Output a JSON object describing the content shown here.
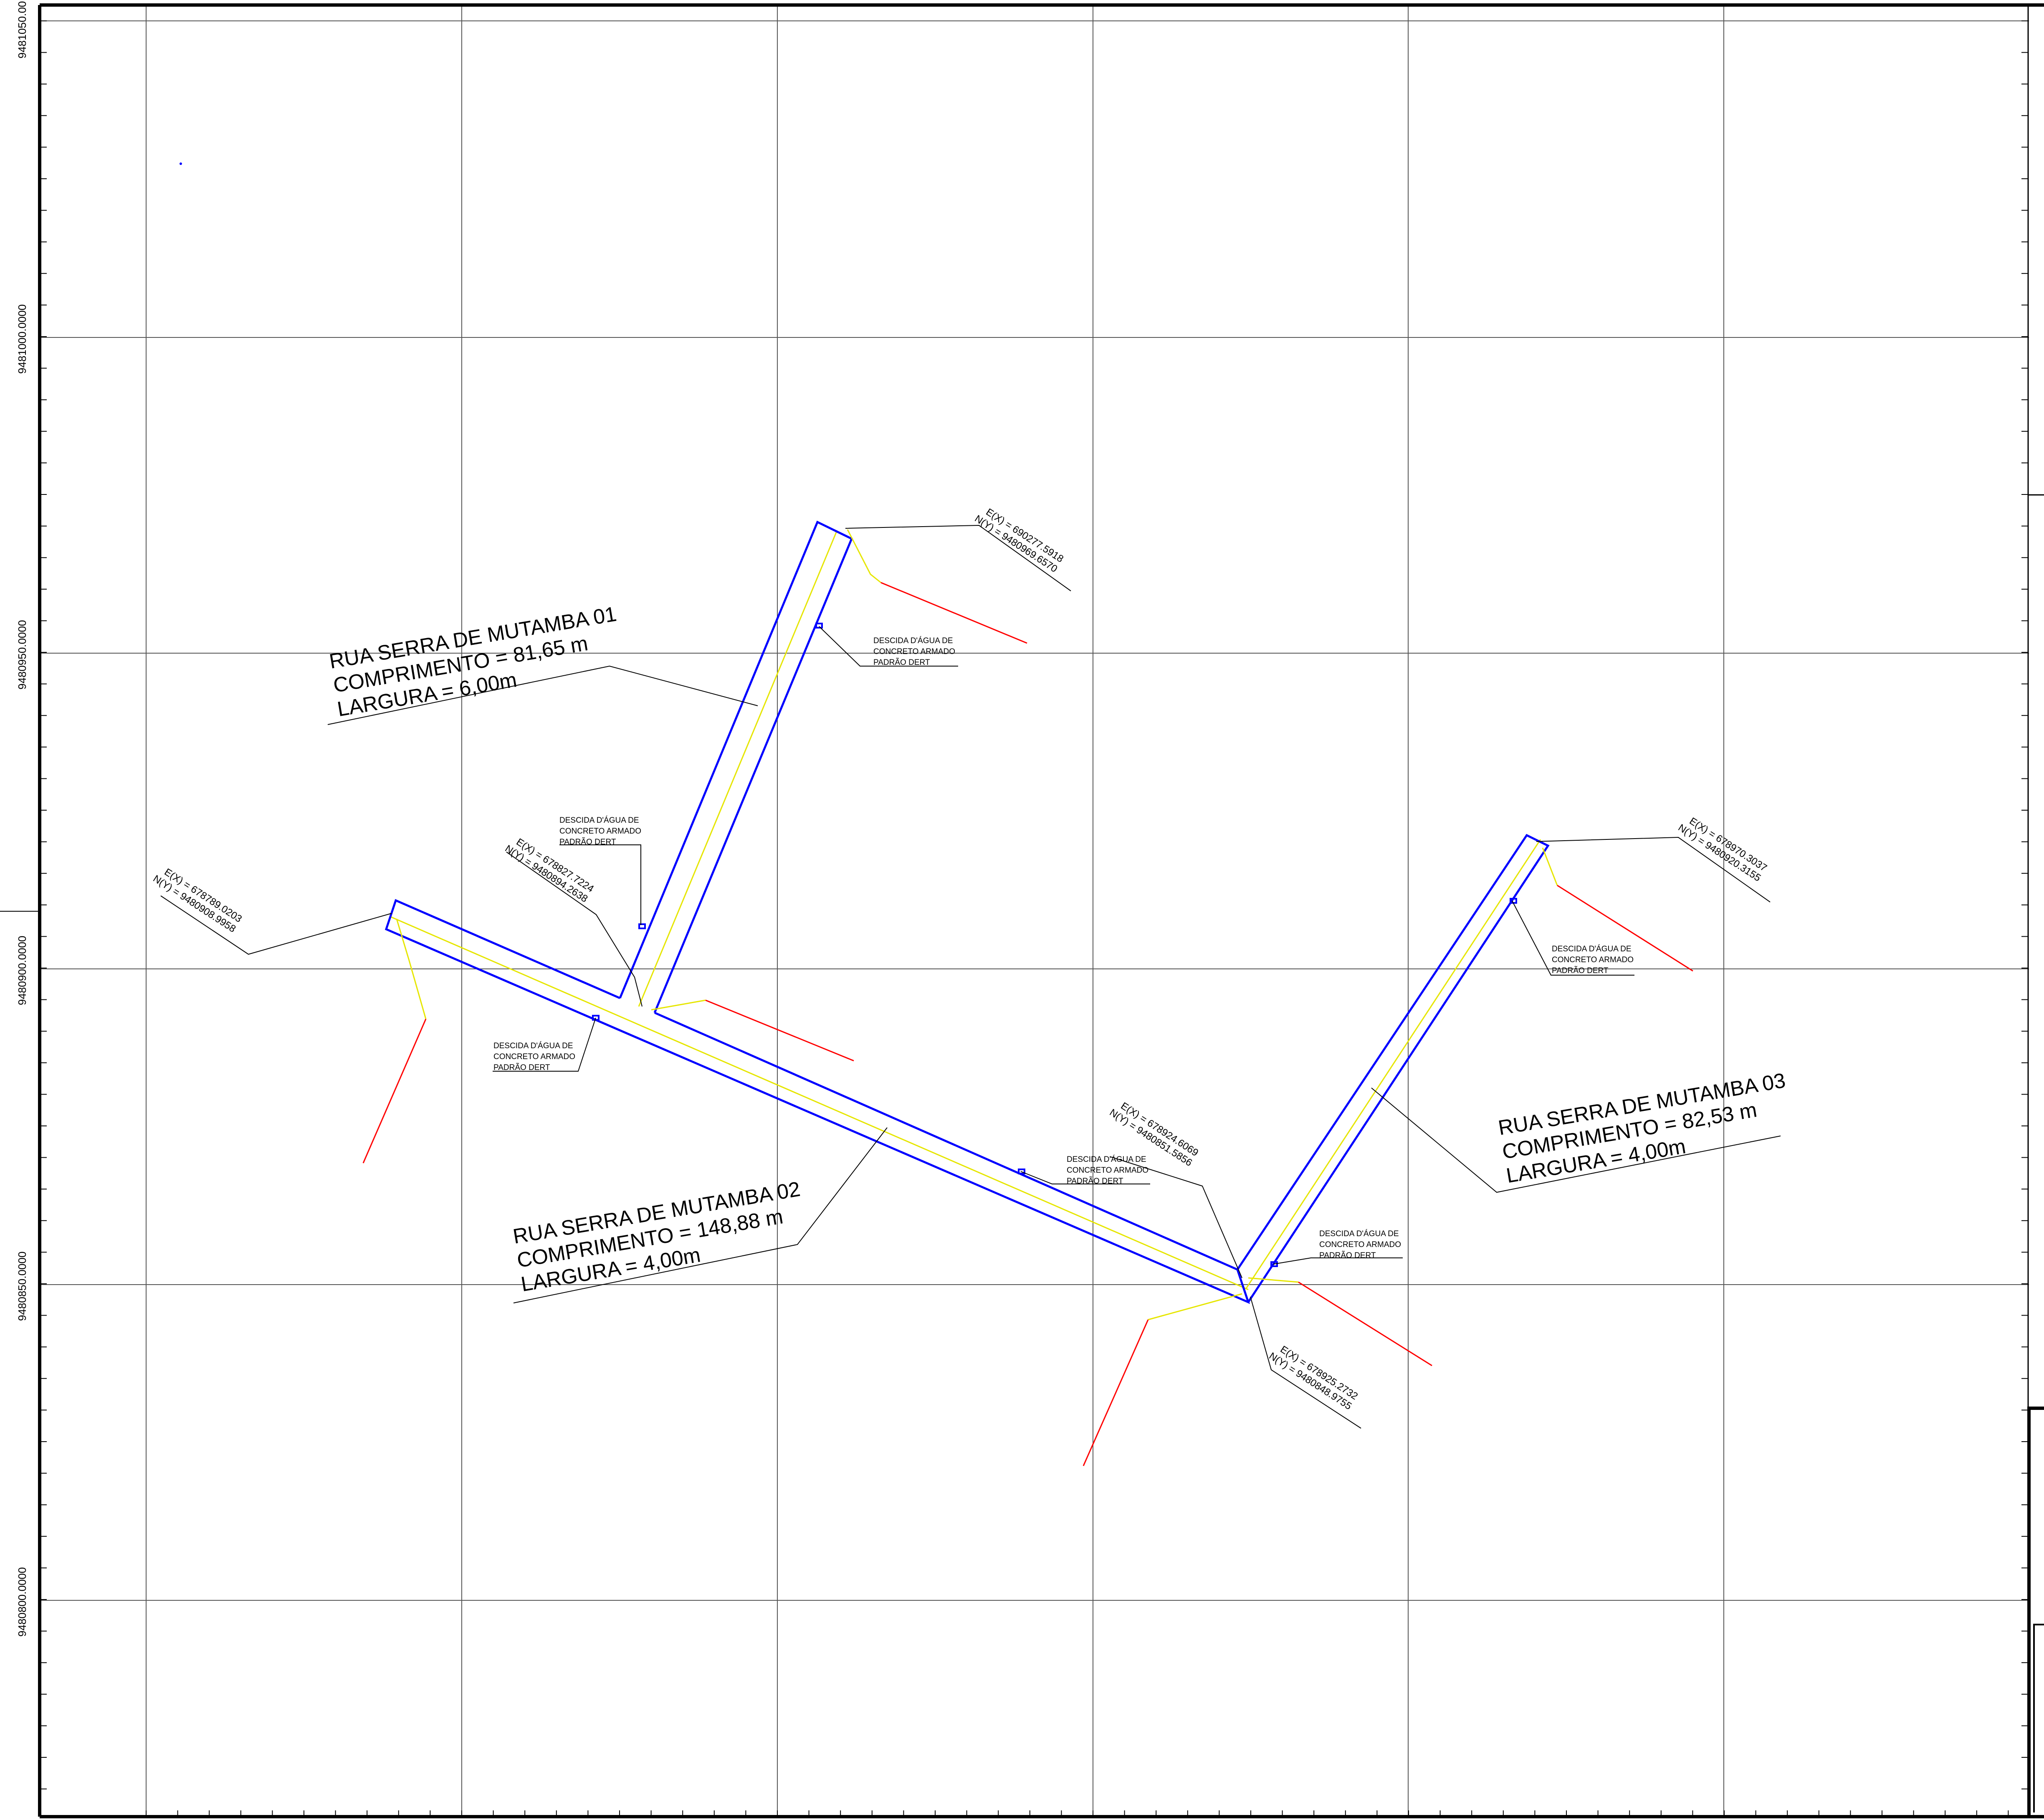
{
  "grid_labels": {
    "y_left": [
      "9481050.00",
      "9481000.0000",
      "9480950.0000",
      "9480900.0000",
      "9480850.0000",
      "9480800.0000"
    ]
  },
  "streets": [
    {
      "name": "RUA SERRA DE MUTAMBA 01",
      "length": "COMPRIMENTO = 81,65 m",
      "width": "LARGURA = 6,00m"
    },
    {
      "name": "RUA SERRA DE MUTAMBA 02",
      "length": "COMPRIMENTO = 148,88 m",
      "width": "LARGURA = 4,00m"
    },
    {
      "name": "RUA SERRA DE MUTAMBA 03",
      "length": "COMPRIMENTO = 82,53 m",
      "width": "LARGURA = 4,00m"
    }
  ],
  "coordinates": [
    {
      "e": "E(X) = 690277.5918",
      "n": "N(Y) = 9480969.6570"
    },
    {
      "e": "E(X) = 678827.7224",
      "n": "N(Y) = 9480894.2638"
    },
    {
      "e": "E(X) = 678789.0203",
      "n": "N(Y) = 9480908.9958"
    },
    {
      "e": "E(X) = 678924.6069",
      "n": "N(Y) = 9480851.5856"
    },
    {
      "e": "E(X) = 678925.2732",
      "n": "N(Y) = 9480848.9755"
    },
    {
      "e": "E(X) = 678970.3037",
      "n": "N(Y) = 9480920.3155"
    }
  ],
  "drain_note": {
    "line1": "DESCIDA D'ÁGUA DE",
    "line2": "CONCRETO ARMADO",
    "line3": "PADRÃO DERT"
  },
  "colors": {
    "road_edge": "#0000ff",
    "centerline": "#e6e600",
    "drain_line": "#ff0000",
    "grid": "#555555",
    "frame": "#000000"
  }
}
